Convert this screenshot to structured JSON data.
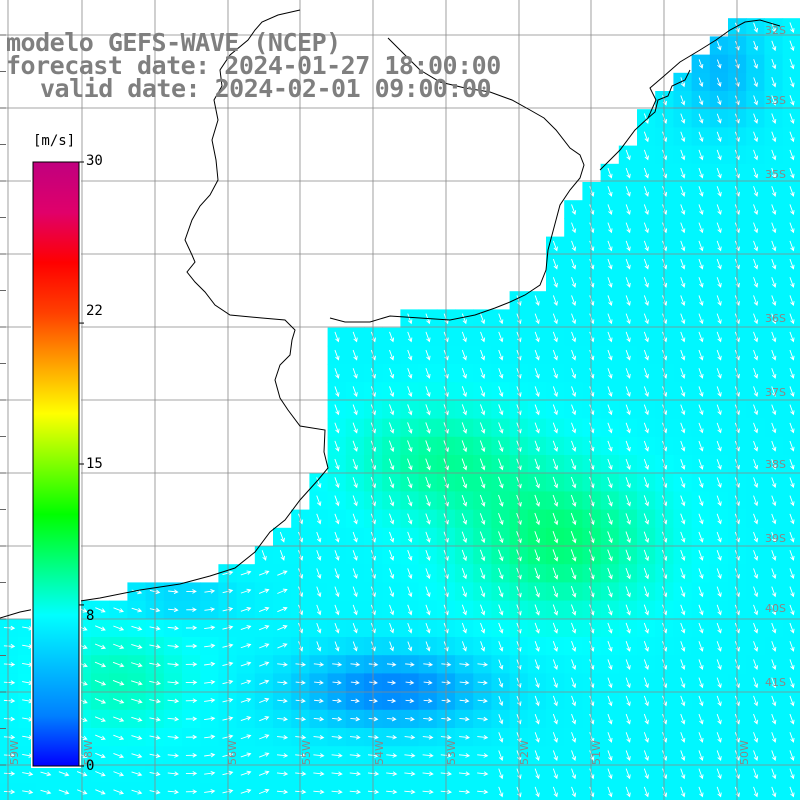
{
  "title": {
    "line1": "modelo GEFS-WAVE (NCEP)",
    "line2": "forecast date: 2024-01-27 18:00:00",
    "line3": "valid date: 2024-02-01 09:00:00"
  },
  "colorbar": {
    "unit": "[m/s]",
    "min": 0,
    "max": 30,
    "tick_labels": [
      "30",
      "22",
      "15",
      "8",
      "0"
    ],
    "tick_values": [
      30,
      22,
      15,
      8,
      0
    ],
    "colors": [
      "#0000ff",
      "#0080ff",
      "#00c0ff",
      "#00ffff",
      "#00ff80",
      "#00ff00",
      "#80ff00",
      "#ffff00",
      "#ffa000",
      "#ff4000",
      "#ff0000",
      "#e0006a",
      "#c0007f"
    ]
  },
  "lat_labels": [
    "32S",
    "33S",
    "35S",
    "36S",
    "37S",
    "38S",
    "39S",
    "40S",
    "41S"
  ],
  "lon_labels": [
    "59W",
    "58W",
    "56W",
    "55W",
    "54W",
    "53W",
    "52W",
    "51W",
    "50W"
  ],
  "field_description": "wind speed field with direction arrows"
}
